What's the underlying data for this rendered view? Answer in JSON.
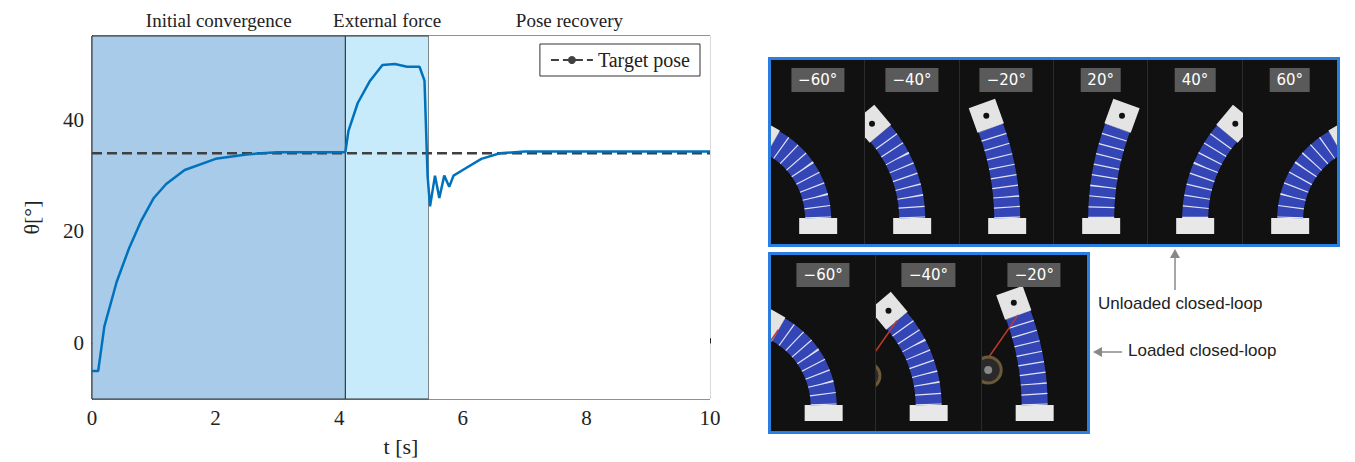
{
  "chart_data": {
    "type": "line",
    "x_label": "t [s]",
    "y_label": "θ[°]",
    "xlim": [
      0,
      10
    ],
    "xticks": [
      0,
      2,
      4,
      6,
      8,
      10
    ],
    "ylim": [
      -10,
      55
    ],
    "yticks": [
      0,
      20,
      40
    ],
    "grid": true,
    "legend": "top-right",
    "x": [
      0,
      0.1,
      0.2,
      0.4,
      0.6,
      0.8,
      1.0,
      1.2,
      1.5,
      2.0,
      2.5,
      3.0,
      4.1,
      4.15,
      4.3,
      4.5,
      4.7,
      4.9,
      5.1,
      5.3,
      5.38,
      5.43,
      5.47,
      5.55,
      5.62,
      5.7,
      5.78,
      5.85,
      6.0,
      6.3,
      6.6,
      7.0,
      8.0,
      10.0
    ],
    "series": [
      {
        "color": "#0072bd",
        "line_style": "solid",
        "values": [
          -5,
          -5,
          3,
          11,
          17,
          22,
          26,
          28.5,
          31,
          33,
          33.8,
          34.2,
          34.2,
          38,
          43,
          47,
          49.8,
          50,
          49.5,
          49.5,
          47,
          30,
          24.5,
          30,
          26,
          30,
          28,
          30,
          31,
          33,
          34,
          34.3,
          34.3,
          34.3
        ]
      }
    ],
    "target_pose": {
      "name": "Target pose",
      "value": 34,
      "color": "#404040",
      "line_style": "dashed"
    },
    "regions": [
      {
        "label": "Initial convergence",
        "x": [
          0,
          4.1
        ],
        "color": "#a7cbe9"
      },
      {
        "label": "External force",
        "x": [
          4.1,
          5.45
        ],
        "color": "#c7ebfb"
      },
      {
        "label": "Pose recovery",
        "x": [
          5.45,
          10
        ],
        "color": "#ffffff"
      }
    ]
  },
  "photo_panels": [
    {
      "label": "Unloaded closed-loop",
      "loaded": false,
      "angles": [
        {
          "value": -60,
          "label": "−60°"
        },
        {
          "value": -40,
          "label": "−40°"
        },
        {
          "value": -20,
          "label": "−20°"
        },
        {
          "value": 20,
          "label": "20°"
        },
        {
          "value": 40,
          "label": "40°"
        },
        {
          "value": 60,
          "label": "60°"
        }
      ]
    },
    {
      "label": "Loaded closed-loop",
      "loaded": true,
      "angles": [
        {
          "value": -60,
          "label": "−60°"
        },
        {
          "value": -40,
          "label": "−40°"
        },
        {
          "value": -20,
          "label": "−20°"
        }
      ]
    }
  ]
}
